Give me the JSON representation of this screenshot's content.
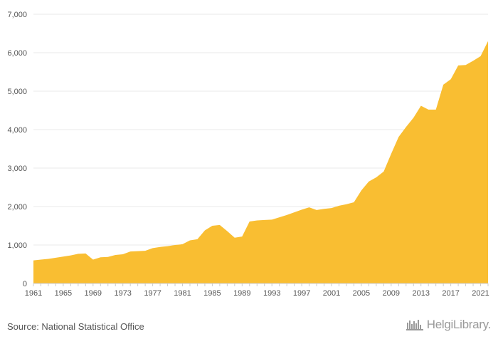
{
  "chart_data": {
    "type": "area",
    "title": "",
    "xlabel": "",
    "ylabel": "",
    "x": [
      1961,
      1962,
      1963,
      1964,
      1965,
      1966,
      1967,
      1968,
      1969,
      1970,
      1971,
      1972,
      1973,
      1974,
      1975,
      1976,
      1977,
      1978,
      1979,
      1980,
      1981,
      1982,
      1983,
      1984,
      1985,
      1986,
      1987,
      1988,
      1989,
      1990,
      1991,
      1992,
      1993,
      1994,
      1995,
      1996,
      1997,
      1998,
      1999,
      2000,
      2001,
      2002,
      2003,
      2004,
      2005,
      2006,
      2007,
      2008,
      2009,
      2010,
      2011,
      2012,
      2013,
      2014,
      2015,
      2016,
      2017,
      2018,
      2019,
      2020,
      2021,
      2022
    ],
    "values": [
      600,
      620,
      640,
      670,
      700,
      730,
      770,
      780,
      620,
      680,
      690,
      740,
      760,
      830,
      840,
      850,
      920,
      950,
      970,
      1000,
      1020,
      1120,
      1150,
      1380,
      1500,
      1520,
      1360,
      1190,
      1220,
      1610,
      1640,
      1650,
      1660,
      1720,
      1780,
      1850,
      1920,
      1980,
      1910,
      1940,
      1960,
      2020,
      2060,
      2110,
      2420,
      2650,
      2760,
      2910,
      3370,
      3810,
      4070,
      4310,
      4620,
      4520,
      4520,
      5170,
      5310,
      5670,
      5680,
      5790,
      5910,
      6300
    ],
    "xticks": [
      "1961",
      "1965",
      "1969",
      "1973",
      "1977",
      "1981",
      "1985",
      "1989",
      "1993",
      "1997",
      "2001",
      "2005",
      "2009",
      "2013",
      "2017",
      "2021"
    ],
    "yticks": [
      "0",
      "1,000",
      "2,000",
      "3,000",
      "4,000",
      "5,000",
      "6,000",
      "7,000"
    ],
    "ylim": [
      0,
      7000
    ],
    "xlim": [
      1961,
      2022
    ],
    "grid": true,
    "legend": "none",
    "colors": {
      "fill": "#F9BE32",
      "grid": "#e8e8e8",
      "axis": "#cccccc",
      "text": "#555555"
    }
  },
  "footer": {
    "source": "Source: National Statistical Office",
    "logo_text": "HelgiLibrary.",
    "logo_icon": "library-shelf-icon"
  }
}
